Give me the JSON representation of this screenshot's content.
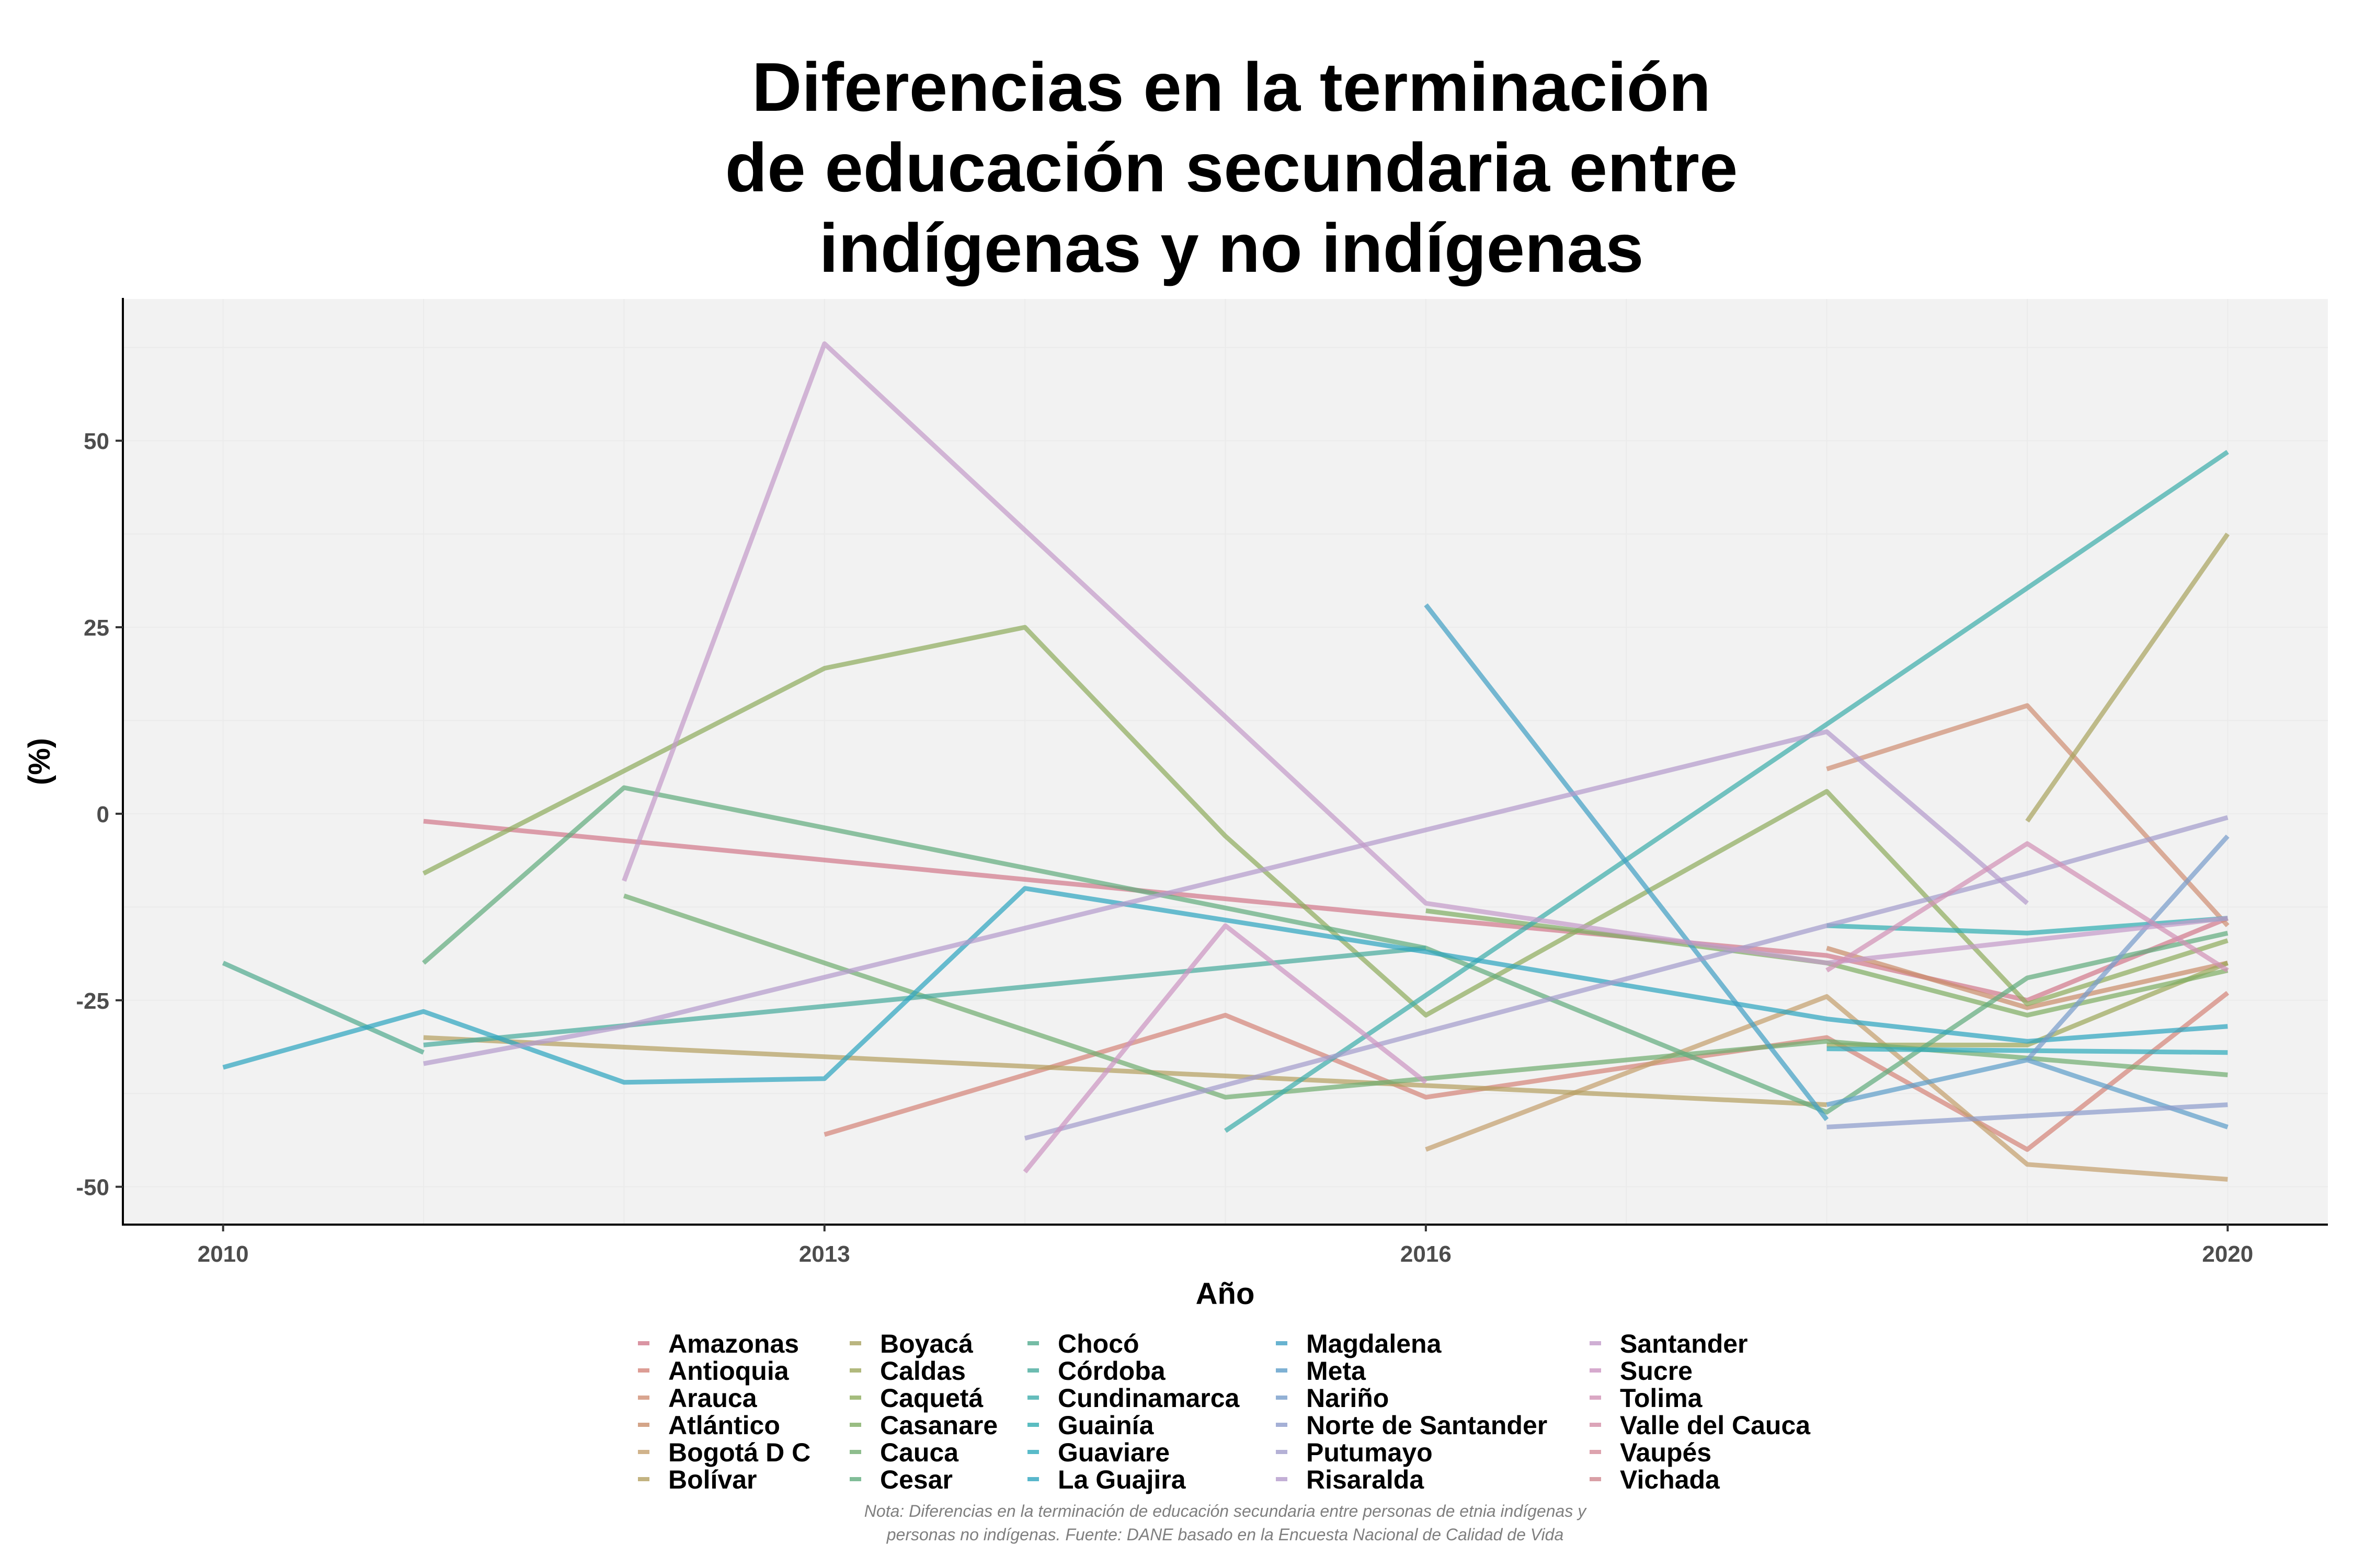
{
  "chart_data": {
    "type": "line",
    "title": "Diferencias en la terminación de educación secundaria entre indígenas y no indígenas",
    "title_lines": [
      "Diferencias en la terminación",
      "de educación secundaria entre",
      "indígenas y no indígenas"
    ],
    "xlabel": "Año",
    "ylabel": "(%)",
    "xlim": [
      2009.5,
      2020.5
    ],
    "ylim": [
      -55,
      69
    ],
    "x_ticks": [
      2010,
      2013,
      2016,
      2020
    ],
    "y_ticks": [
      -50,
      -25,
      0,
      25,
      50
    ],
    "grid": true,
    "legend_position": "bottom",
    "note": "Nota: Diferencias en la terminación de educación secundaria entre personas de etnia indígenas y personas no indígenas. Fuente: DANE basado en la Encuesta Nacional de Calidad de Vida",
    "note_lines": [
      "Nota: Diferencias en la terminación de educación secundaria entre personas de etnia indígenas y",
      "personas no indígenas. Fuente: DANE basado en la Encuesta Nacional de Calidad de Vida"
    ],
    "series": [
      {
        "name": "Amazonas",
        "color": "#d17a8c",
        "points": [
          [
            2011,
            -1
          ],
          [
            2016,
            -14
          ],
          [
            2018,
            -19
          ],
          [
            2019,
            -25
          ],
          [
            2020,
            -14
          ]
        ]
      },
      {
        "name": "Antioquia",
        "color": "#d4857a",
        "points": [
          [
            2013,
            -43
          ],
          [
            2015,
            -27
          ],
          [
            2016,
            -38
          ],
          [
            2018,
            -30
          ],
          [
            2019,
            -45
          ],
          [
            2020,
            -24
          ]
        ]
      },
      {
        "name": "Arauca",
        "color": "#cf8f74",
        "points": [
          [
            2018,
            6
          ],
          [
            2019,
            14.5
          ],
          [
            2020,
            -15
          ]
        ]
      },
      {
        "name": "Atlántico",
        "color": "#c98e6b",
        "points": [
          [
            2018,
            -18
          ],
          [
            2019,
            -26
          ],
          [
            2020,
            -20
          ]
        ]
      },
      {
        "name": "Bogotá D C",
        "color": "#c4a06e",
        "points": [
          [
            2016,
            -45
          ],
          [
            2018,
            -24.5
          ],
          [
            2019,
            -47
          ],
          [
            2020,
            -49
          ]
        ]
      },
      {
        "name": "Bolívar",
        "color": "#b4a061",
        "points": [
          [
            2011,
            -30
          ],
          [
            2018,
            -39
          ]
        ]
      },
      {
        "name": "Boyacá",
        "color": "#a9a360",
        "points": [
          [
            2019,
            -1
          ],
          [
            2020,
            37.5
          ]
        ]
      },
      {
        "name": "Caldas",
        "color": "#9da85c",
        "points": [
          [
            2018,
            -31
          ],
          [
            2019,
            -31
          ],
          [
            2020,
            -20
          ]
        ]
      },
      {
        "name": "Caquetá",
        "color": "#8fac5e",
        "points": [
          [
            2011,
            -8
          ],
          [
            2013,
            19.5
          ],
          [
            2014,
            25
          ],
          [
            2015,
            -3
          ],
          [
            2016,
            -27
          ],
          [
            2018,
            3
          ],
          [
            2019,
            -25.5
          ],
          [
            2020,
            -17
          ]
        ]
      },
      {
        "name": "Casanare",
        "color": "#7fad64",
        "points": [
          [
            2016,
            -13
          ],
          [
            2018,
            -20
          ],
          [
            2019,
            -27
          ],
          [
            2020,
            -21
          ]
        ]
      },
      {
        "name": "Cauca",
        "color": "#72ad71",
        "points": [
          [
            2012,
            -11
          ],
          [
            2015,
            -38
          ],
          [
            2018,
            -30.5
          ],
          [
            2020,
            -35
          ]
        ]
      },
      {
        "name": "Cesar",
        "color": "#62ac7e",
        "points": [
          [
            2011,
            -20
          ],
          [
            2012,
            3.5
          ],
          [
            2016,
            -18
          ],
          [
            2018,
            -40
          ],
          [
            2019,
            -22
          ],
          [
            2020,
            -16
          ]
        ]
      },
      {
        "name": "Chocó",
        "color": "#52ab8f",
        "points": [
          [
            2010,
            -20
          ],
          [
            2011,
            -32
          ]
        ]
      },
      {
        "name": "Córdoba",
        "color": "#49ab9d",
        "points": [
          [
            2011,
            -31
          ],
          [
            2016,
            -18
          ]
        ]
      },
      {
        "name": "Cundinamarca",
        "color": "#3eadab",
        "points": [
          [
            2015,
            -42.5
          ],
          [
            2018,
            12
          ],
          [
            2020,
            48.5
          ]
        ]
      },
      {
        "name": "Guainía",
        "color": "#32adb2",
        "points": [
          [
            2018,
            -15
          ],
          [
            2019,
            -16
          ],
          [
            2020,
            -14
          ]
        ]
      },
      {
        "name": "Guaviare",
        "color": "#30aabb",
        "points": [
          [
            2018,
            -31.5
          ],
          [
            2020,
            -32
          ]
        ]
      },
      {
        "name": "La Guajira",
        "color": "#2fa5bf",
        "points": [
          [
            2010,
            -34
          ],
          [
            2011,
            -26.5
          ],
          [
            2012,
            -36
          ],
          [
            2013,
            -35.5
          ],
          [
            2014,
            -10
          ],
          [
            2016,
            -18.5
          ],
          [
            2018,
            -27.5
          ],
          [
            2019,
            -30.5
          ],
          [
            2020,
            -28.5
          ]
        ]
      },
      {
        "name": "Magdalena",
        "color": "#42a0c4",
        "points": [
          [
            2016,
            28
          ],
          [
            2018,
            -41
          ]
        ]
      },
      {
        "name": "Meta",
        "color": "#5e9ec9",
        "points": [
          [
            2018,
            -39
          ],
          [
            2019,
            -33
          ],
          [
            2020,
            -42
          ]
        ]
      },
      {
        "name": "Nariño",
        "color": "#789dcb",
        "points": [
          [
            2019,
            -33
          ],
          [
            2020,
            -3
          ]
        ]
      },
      {
        "name": "Norte de Santander",
        "color": "#8e9ccc",
        "points": [
          [
            2018,
            -42
          ],
          [
            2020,
            -39
          ]
        ]
      },
      {
        "name": "Putumayo",
        "color": "#a39dcc",
        "points": [
          [
            2014,
            -43.5
          ],
          [
            2018,
            -15
          ],
          [
            2019,
            -8
          ],
          [
            2020,
            -0.5
          ]
        ]
      },
      {
        "name": "Risaralda",
        "color": "#b49bcc",
        "points": [
          [
            2011,
            -33.5
          ],
          [
            2012,
            -28.5
          ],
          [
            2018,
            11
          ],
          [
            2019,
            -12
          ]
        ]
      },
      {
        "name": "Santander",
        "color": "#c39bc9",
        "points": [
          [
            2012,
            -9
          ],
          [
            2013,
            63
          ],
          [
            2016,
            -12
          ],
          [
            2018,
            -20
          ],
          [
            2020,
            -14
          ]
        ]
      },
      {
        "name": "Sucre",
        "color": "#cc95c2",
        "points": [
          [
            2014,
            -48
          ],
          [
            2015,
            -15
          ],
          [
            2016,
            -36
          ]
        ]
      },
      {
        "name": "Tolima",
        "color": "#d192b5",
        "points": [
          [
            2018,
            -21
          ],
          [
            2019,
            -4
          ],
          [
            2020,
            -21
          ]
        ]
      },
      {
        "name": "Valle del Cauca",
        "color": "#d38fa7",
        "points": []
      },
      {
        "name": "Vaupés",
        "color": "#d48c9a",
        "points": []
      },
      {
        "name": "Vichada",
        "color": "#d08890",
        "points": []
      }
    ]
  }
}
